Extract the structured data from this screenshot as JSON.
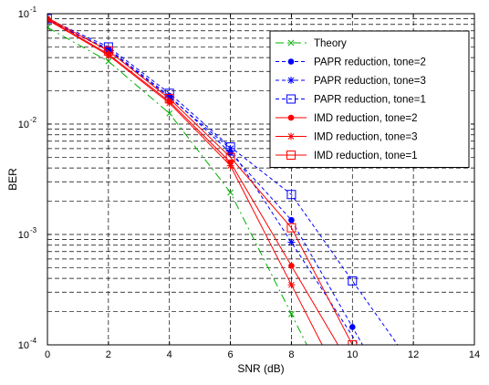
{
  "chart_data": {
    "type": "line",
    "xlabel": "SNR (dB)",
    "ylabel": "BER",
    "xlim": [
      0,
      14
    ],
    "ylim": [
      0.0001,
      0.1
    ],
    "yscale": "log",
    "grid": "major and minor dashed",
    "legend_position": "top-right",
    "x_ticks": [
      "0",
      "2",
      "4",
      "6",
      "8",
      "10",
      "12",
      "14"
    ],
    "y_ticks": [
      {
        "base": "10",
        "exp": "-4",
        "value": 0.0001
      },
      {
        "base": "10",
        "exp": "-3",
        "value": 0.001
      },
      {
        "base": "10",
        "exp": "-2",
        "value": 0.01
      },
      {
        "base": "10",
        "exp": "-1",
        "value": 0.1
      }
    ],
    "series": [
      {
        "name": "Theory",
        "color": "#00b000",
        "dash": "long",
        "marker": "x",
        "x": [
          0,
          2,
          4,
          6,
          8
        ],
        "y": [
          0.075,
          0.037,
          0.0125,
          0.0024,
          0.00019
        ]
      },
      {
        "name": "PAPR reduction, tone=2",
        "color": "#0000ff",
        "dash": "short",
        "marker": "dot",
        "x": [
          0,
          2,
          4,
          6,
          8,
          10
        ],
        "y": [
          0.088,
          0.048,
          0.018,
          0.0055,
          0.00135,
          0.000145
        ]
      },
      {
        "name": "PAPR reduction, tone=3",
        "color": "#0000ff",
        "dash": "short",
        "marker": "star",
        "x": [
          0,
          2,
          4,
          6,
          8
        ],
        "y": [
          0.087,
          0.047,
          0.0175,
          0.006,
          0.00085
        ]
      },
      {
        "name": "PAPR reduction, tone=1",
        "color": "#0000ff",
        "dash": "short",
        "marker": "square",
        "x": [
          0,
          2,
          4,
          6,
          8,
          10
        ],
        "y": [
          0.09,
          0.05,
          0.019,
          0.0062,
          0.0023,
          0.00038
        ]
      },
      {
        "name": "IMD reduction, tone=2",
        "color": "#ff0000",
        "dash": "solid",
        "marker": "dot",
        "x": [
          0,
          2,
          4,
          6,
          8
        ],
        "y": [
          0.09,
          0.043,
          0.016,
          0.0045,
          0.00052
        ]
      },
      {
        "name": "IMD reduction, tone=3",
        "color": "#ff0000",
        "dash": "solid",
        "marker": "star",
        "x": [
          0,
          2,
          4,
          6,
          8
        ],
        "y": [
          0.088,
          0.042,
          0.0155,
          0.0042,
          0.00035
        ]
      },
      {
        "name": "IMD reduction, tone=1",
        "color": "#ff0000",
        "dash": "solid",
        "marker": "square",
        "x": [
          0,
          2,
          4,
          6,
          8,
          10
        ],
        "y": [
          0.092,
          0.046,
          0.017,
          0.005,
          0.00115,
          0.0001
        ]
      }
    ]
  }
}
